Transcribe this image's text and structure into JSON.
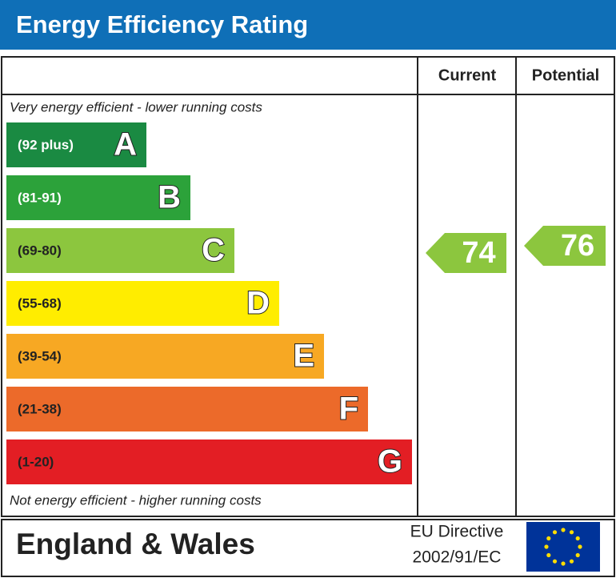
{
  "header": {
    "title": "Energy Efficiency Rating"
  },
  "columns": [
    "Current",
    "Potential"
  ],
  "top_note": "Very energy efficient - lower running costs",
  "bottom_note": "Not energy efficient - higher running costs",
  "bands": [
    {
      "range": "(92 plus)",
      "letter": "A",
      "color": "#1a8a42"
    },
    {
      "range": "(81-91)",
      "letter": "B",
      "color": "#2ca23a"
    },
    {
      "range": "(69-80)",
      "letter": "C",
      "color": "#8cc63e"
    },
    {
      "range": "(55-68)",
      "letter": "D",
      "color": "#ffed00"
    },
    {
      "range": "(39-54)",
      "letter": "E",
      "color": "#f7a823"
    },
    {
      "range": "(21-38)",
      "letter": "F",
      "color": "#ec6a2a"
    },
    {
      "range": "(1-20)",
      "letter": "G",
      "color": "#e31e24"
    }
  ],
  "current": {
    "value": 74,
    "color": "#8cc63e"
  },
  "potential": {
    "value": 76,
    "color": "#8cc63e"
  },
  "footer": {
    "region": "England & Wales",
    "directive": [
      "EU Directive",
      "2002/91/EC"
    ]
  }
}
